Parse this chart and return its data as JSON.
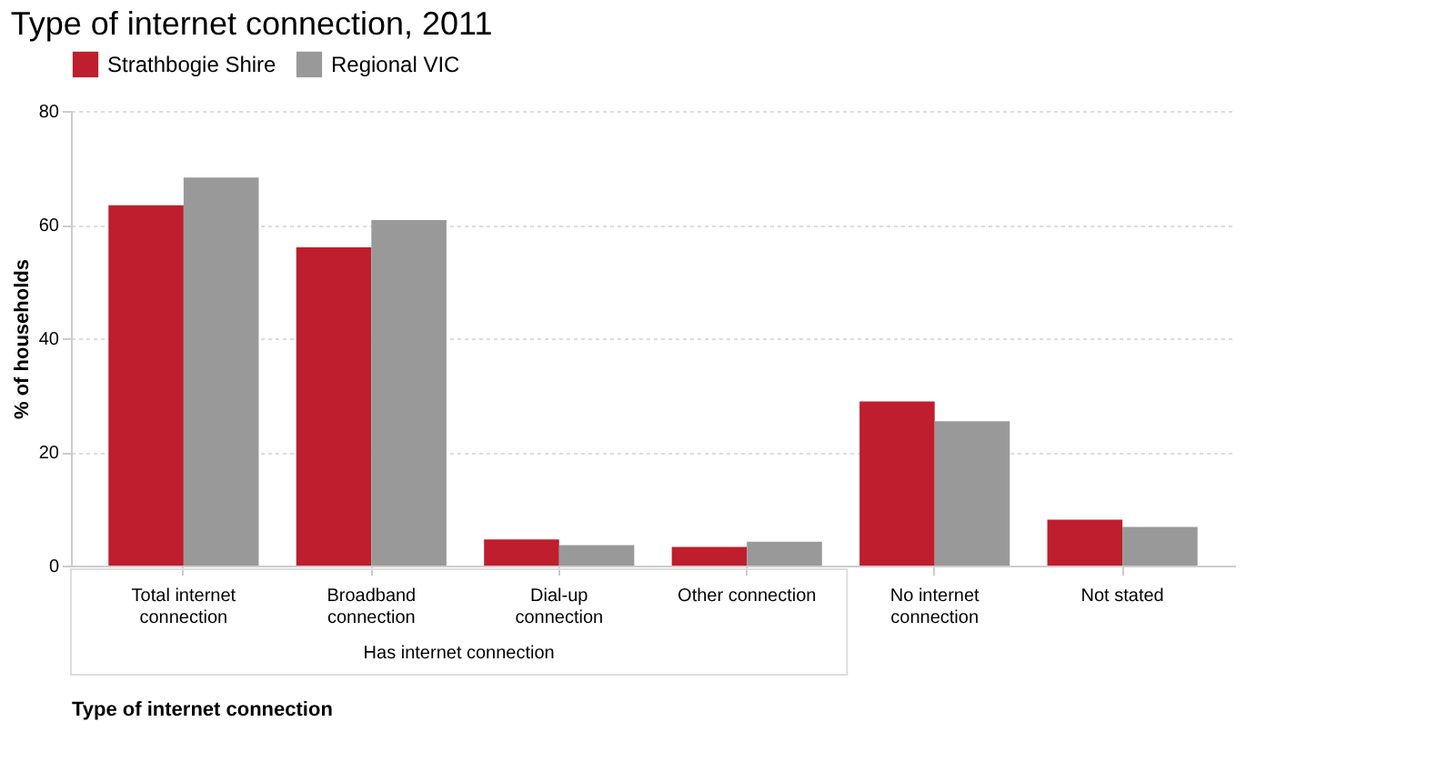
{
  "chart_data": {
    "type": "bar",
    "title": "Type of internet connection, 2011",
    "xlabel": "Type of internet connection",
    "ylabel": "% of households",
    "categories": [
      "Total internet connection",
      "Broadband connection",
      "Dial-up connection",
      "Other connection",
      "No internet connection",
      "Not stated"
    ],
    "series": [
      {
        "name": "Strathbogie Shire",
        "color": "#be1e2d",
        "values": [
          63.4,
          56.0,
          4.6,
          3.3,
          28.9,
          8.1
        ]
      },
      {
        "name": "Regional VIC",
        "color": "#999999",
        "values": [
          68.3,
          60.8,
          3.6,
          4.2,
          25.4,
          6.8
        ]
      }
    ],
    "annotations": [
      "Has internet connection"
    ],
    "ylim": [
      0,
      80
    ],
    "yticks": [
      0,
      20,
      40,
      60,
      80
    ],
    "grid": "y",
    "legend": "top left"
  }
}
